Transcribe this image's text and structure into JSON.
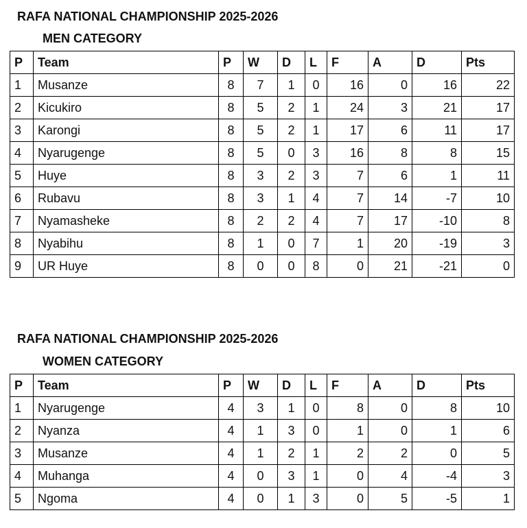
{
  "sections": [
    {
      "title": "RAFA NATIONAL CHAMPIONSHIP 2025-2026",
      "subtitle": "MEN CATEGORY",
      "table": {
        "header": [
          "P",
          "Team",
          "P",
          "W",
          "D",
          "L",
          "F",
          "A",
          "D",
          "Pts"
        ],
        "rows": [
          [
            1,
            "Musanze",
            8,
            7,
            1,
            0,
            16,
            0,
            16,
            22
          ],
          [
            2,
            "Kicukiro",
            8,
            5,
            2,
            1,
            24,
            3,
            21,
            17
          ],
          [
            3,
            "Karongi",
            8,
            5,
            2,
            1,
            17,
            6,
            11,
            17
          ],
          [
            4,
            "Nyarugenge",
            8,
            5,
            0,
            3,
            16,
            8,
            8,
            15
          ],
          [
            5,
            "Huye",
            8,
            3,
            2,
            3,
            7,
            6,
            1,
            11
          ],
          [
            6,
            "Rubavu",
            8,
            3,
            1,
            4,
            7,
            14,
            -7,
            10
          ],
          [
            7,
            "Nyamasheke",
            8,
            2,
            2,
            4,
            7,
            17,
            -10,
            8
          ],
          [
            8,
            "Nyabihu",
            8,
            1,
            0,
            7,
            1,
            20,
            -19,
            3
          ],
          [
            9,
            "UR Huye",
            8,
            0,
            0,
            8,
            0,
            21,
            -21,
            0
          ]
        ]
      }
    },
    {
      "title": "RAFA NATIONAL CHAMPIONSHIP 2025-2026",
      "subtitle": "WOMEN CATEGORY",
      "table": {
        "header": [
          "P",
          "Team",
          "P",
          "W",
          "D",
          "L",
          "F",
          "A",
          "D",
          "Pts"
        ],
        "rows": [
          [
            1,
            "Nyarugenge",
            4,
            3,
            1,
            0,
            8,
            0,
            8,
            10
          ],
          [
            2,
            "Nyanza",
            4,
            1,
            3,
            0,
            1,
            0,
            1,
            6
          ],
          [
            3,
            "Musanze",
            4,
            1,
            2,
            1,
            2,
            2,
            0,
            5
          ],
          [
            4,
            "Muhanga",
            4,
            0,
            3,
            1,
            0,
            4,
            -4,
            3
          ],
          [
            5,
            "Ngoma",
            4,
            0,
            1,
            3,
            0,
            5,
            -5,
            1
          ]
        ]
      }
    }
  ]
}
